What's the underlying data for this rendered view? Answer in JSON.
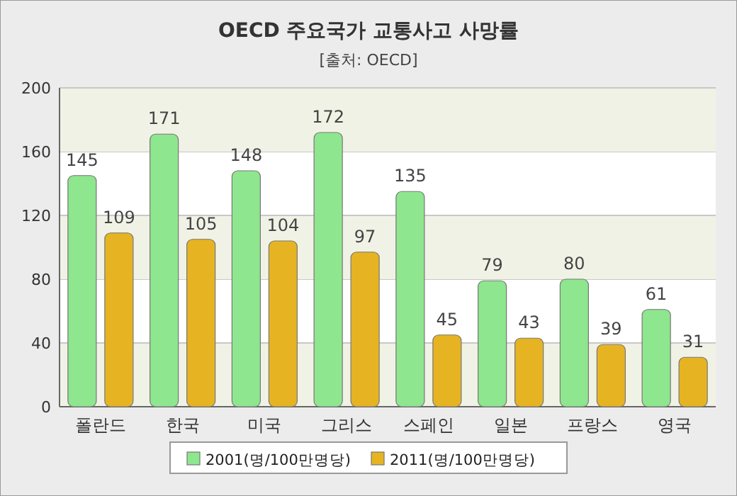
{
  "chart_data": {
    "type": "bar",
    "title": "OECD 주요국가 교통사고 사망률",
    "subtitle": "[출처: OECD]",
    "categories": [
      "폴란드",
      "한국",
      "미국",
      "그리스",
      "스페인",
      "일본",
      "프랑스",
      "영국"
    ],
    "series": [
      {
        "name": "2001(명/100만명당)",
        "color": "#8ee68e",
        "values": [
          145,
          171,
          148,
          172,
          135,
          79,
          80,
          61
        ]
      },
      {
        "name": "2011(명/100만명당)",
        "color": "#e6b422",
        "values": [
          109,
          105,
          104,
          97,
          45,
          43,
          39,
          31
        ]
      }
    ],
    "ylim": [
      0,
      200
    ],
    "yticks": [
      0,
      40,
      80,
      120,
      160,
      200
    ],
    "grid": "y",
    "legend": "bottom",
    "data_labels": true
  }
}
